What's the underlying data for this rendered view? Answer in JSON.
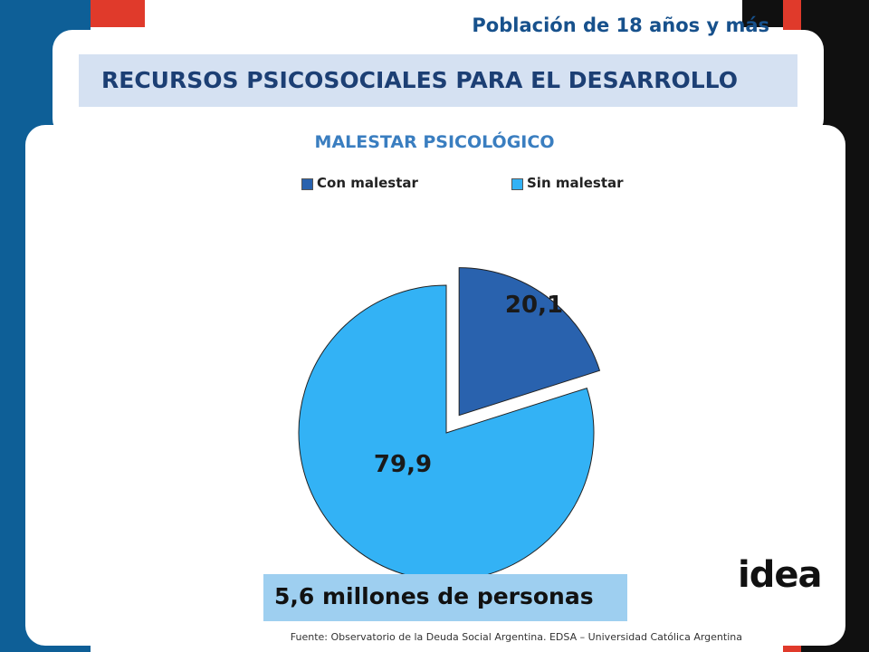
{
  "header": {
    "subtitle": "Población de 18 años y más",
    "title": "RECURSOS PSICOSOCIALES PARA EL DESARROLLO"
  },
  "chart_data": {
    "type": "pie",
    "title": "MALESTAR PSICOLÓGICO",
    "categories": [
      "Con malestar",
      "Sin malestar"
    ],
    "values": [
      20.1,
      79.9
    ],
    "value_labels": [
      "20,1",
      "79,9"
    ],
    "colors": [
      "#2962ae",
      "#33b2f5"
    ],
    "legend_position": "top",
    "exploded": [
      true,
      false
    ]
  },
  "footer": {
    "population": "5,6 millones de personas",
    "source": "Fuente:  Observatorio de  la Deuda Social Argentina. EDSA  – Universidad Católica Argentina",
    "logo": "idea"
  }
}
